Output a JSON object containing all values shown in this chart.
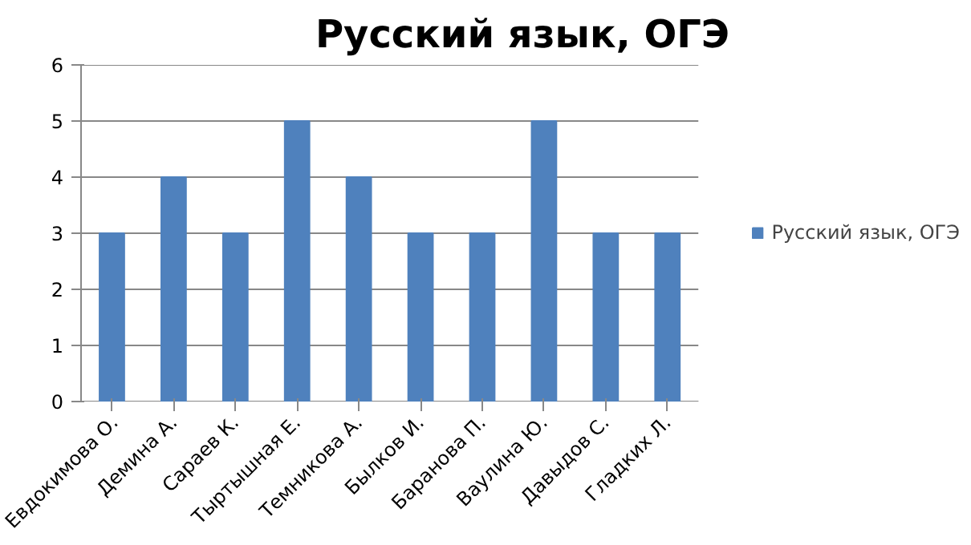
{
  "chart_data": {
    "type": "bar",
    "title": "Русский язык, ОГЭ",
    "categories": [
      "Евдокимова О.",
      "Демина А.",
      "Сараев К.",
      "Тыртышная Е.",
      "Темникова А.",
      "Былков И.",
      "Баранова П.",
      "Ваулина Ю.",
      "Давыдов С.",
      "Гладких Л."
    ],
    "series": [
      {
        "name": "Русский язык, ОГЭ",
        "color": "#4f81bd",
        "values": [
          3,
          4,
          3,
          5,
          4,
          3,
          3,
          5,
          3,
          3
        ]
      }
    ],
    "ylim": [
      0,
      6
    ],
    "yticks": [
      0,
      1,
      2,
      3,
      4,
      5,
      6
    ],
    "grid": "y",
    "legend": "right"
  }
}
